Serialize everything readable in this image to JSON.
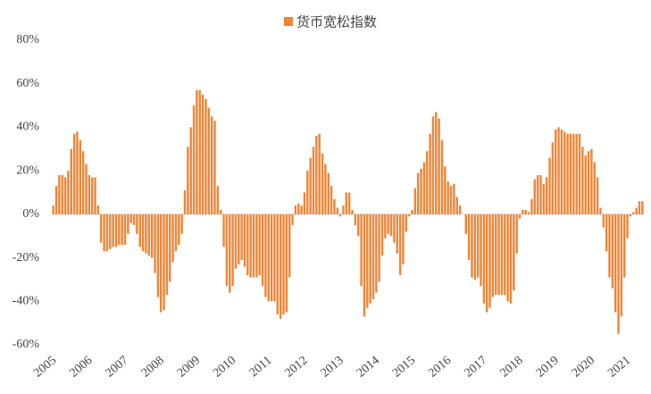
{
  "chart_data": {
    "type": "bar",
    "categories": [
      "2005",
      null,
      null,
      null,
      null,
      null,
      null,
      null,
      null,
      null,
      null,
      null,
      "2006",
      null,
      null,
      null,
      null,
      null,
      null,
      null,
      null,
      null,
      null,
      null,
      "2007",
      null,
      null,
      null,
      null,
      null,
      null,
      null,
      null,
      null,
      null,
      null,
      "2008",
      null,
      null,
      null,
      null,
      null,
      null,
      null,
      null,
      null,
      null,
      null,
      "2009",
      null,
      null,
      null,
      null,
      null,
      null,
      null,
      null,
      null,
      null,
      null,
      "2010",
      null,
      null,
      null,
      null,
      null,
      null,
      null,
      null,
      null,
      null,
      null,
      "2011",
      null,
      null,
      null,
      null,
      null,
      null,
      null,
      null,
      null,
      null,
      null,
      "2012",
      null,
      null,
      null,
      null,
      null,
      null,
      null,
      null,
      null,
      null,
      null,
      "2013",
      null,
      null,
      null,
      null,
      null,
      null,
      null,
      null,
      null,
      null,
      null,
      "2014",
      null,
      null,
      null,
      null,
      null,
      null,
      null,
      null,
      null,
      null,
      null,
      "2015",
      null,
      null,
      null,
      null,
      null,
      null,
      null,
      null,
      null,
      null,
      null,
      "2016",
      null,
      null,
      null,
      null,
      null,
      null,
      null,
      null,
      null,
      null,
      null,
      "2017",
      null,
      null,
      null,
      null,
      null,
      null,
      null,
      null,
      null,
      null,
      null,
      "2018",
      null,
      null,
      null,
      null,
      null,
      null,
      null,
      null,
      null,
      null,
      null,
      "2019",
      null,
      null,
      null,
      null,
      null,
      null,
      null,
      null,
      null,
      null,
      null,
      "2020",
      null,
      null,
      null,
      null,
      null,
      null,
      null,
      null,
      null,
      null,
      null,
      "2021",
      null,
      null,
      null,
      null,
      null
    ],
    "series": [
      {
        "name": "货币宽松指数",
        "color": "#ee8538",
        "values": [
          4,
          13,
          18,
          18,
          17,
          20,
          30,
          37,
          38,
          34,
          29,
          23,
          18,
          17,
          17,
          4,
          -13,
          -17,
          -17,
          -16,
          -15,
          -15,
          -14,
          -14,
          -14,
          -9,
          -4,
          -5,
          -9,
          -15,
          -17,
          -18,
          -19,
          -20,
          -27,
          -38,
          -45,
          -44,
          -37,
          -31,
          -22,
          -17,
          -14,
          -9,
          11,
          31,
          40,
          50,
          57,
          57,
          55,
          53,
          49,
          45,
          43,
          13,
          2,
          -15,
          -33,
          -36,
          -33,
          -25,
          -23,
          -21,
          -24,
          -28,
          -29,
          -29,
          -29,
          -28,
          -33,
          -38,
          -40,
          -40,
          -40,
          -46,
          -48,
          -46,
          -45,
          -29,
          -5,
          4,
          5,
          4,
          10,
          20,
          26,
          31,
          36,
          37,
          28,
          23,
          19,
          13,
          7,
          3,
          -1,
          4,
          10,
          10,
          2,
          -5,
          -10,
          -33,
          -47,
          -43,
          -41,
          -39,
          -36,
          -31,
          -19,
          -11,
          -9,
          -10,
          -13,
          -18,
          -28,
          -23,
          -8,
          -1,
          2,
          12,
          19,
          21,
          24,
          29,
          37,
          45,
          47,
          44,
          34,
          22,
          15,
          13,
          14,
          8,
          4,
          0,
          -9,
          -21,
          -29,
          -30,
          -29,
          -33,
          -41,
          -45,
          -43,
          -38,
          -37,
          -37,
          -37,
          -37,
          -40,
          -41,
          -35,
          -18,
          -2,
          2,
          2,
          1,
          7,
          16,
          18,
          18,
          14,
          17,
          26,
          33,
          39,
          40,
          39,
          38,
          37,
          37,
          37,
          37,
          37,
          31,
          27,
          29,
          30,
          24,
          17,
          3,
          -6,
          -17,
          -29,
          -34,
          -45,
          -55,
          -47,
          -29,
          -11,
          -1,
          1,
          3,
          6,
          6
        ]
      }
    ],
    "ylim": [
      -60,
      80
    ],
    "yticks": [
      {
        "value": -60,
        "label": "-60%"
      },
      {
        "value": -40,
        "label": "-40%"
      },
      {
        "value": -20,
        "label": "-20%"
      },
      {
        "value": 0,
        "label": "0%"
      },
      {
        "value": 20,
        "label": "20%"
      },
      {
        "value": 40,
        "label": "40%"
      },
      {
        "value": 60,
        "label": "60%"
      },
      {
        "value": 80,
        "label": "80%"
      }
    ],
    "legend": "top"
  }
}
